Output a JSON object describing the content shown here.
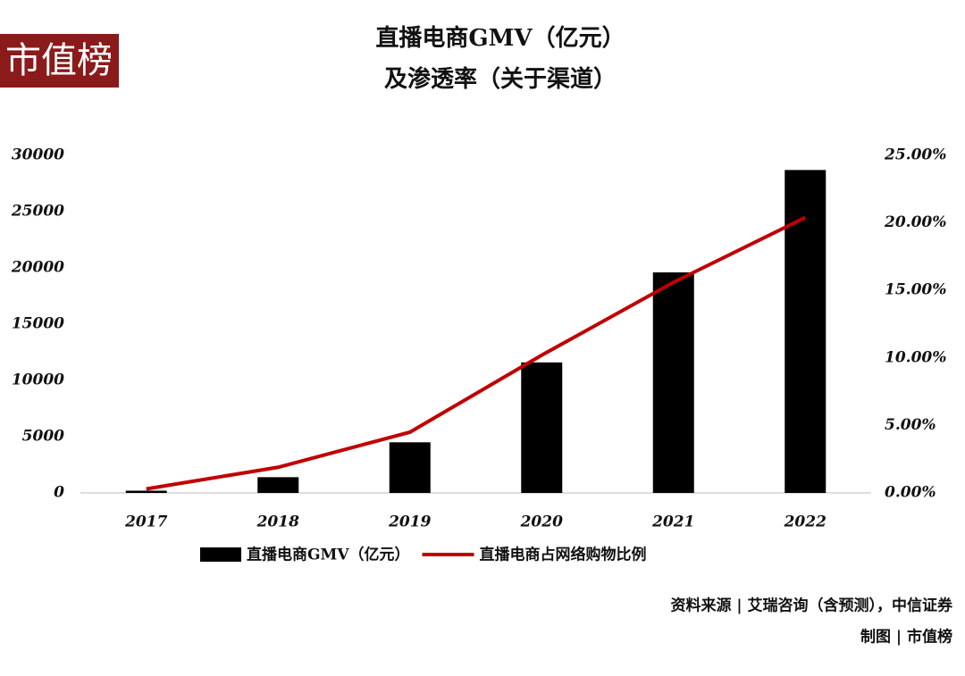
{
  "chart_data": {
    "type": "bar",
    "logo": "市值榜",
    "title": "直播电商GMV（亿元）",
    "subtitle": "及渗透率（关于渠道）",
    "categories": [
      "2017",
      "2018",
      "2019",
      "2020",
      "2021",
      "2022"
    ],
    "series": [
      {
        "name": "直播电商GMV（亿元）",
        "type": "bar",
        "color": "#000000",
        "values": [
          200,
          1400,
          4500,
          11600,
          19600,
          28700
        ]
      },
      {
        "name": "直播电商占网络购物比例",
        "type": "line",
        "axis": "y2",
        "color": "#c00000",
        "values": [
          0.3,
          1.9,
          4.5,
          10.2,
          15.6,
          20.4
        ]
      }
    ],
    "ylim": [
      0,
      30000
    ],
    "yticks": [
      0,
      5000,
      10000,
      15000,
      20000,
      25000,
      30000
    ],
    "y2lim": [
      0,
      25
    ],
    "y2ticks": [
      {
        "value": 0,
        "label": "0.00%"
      },
      {
        "value": 5,
        "label": "5.00%"
      },
      {
        "value": 10,
        "label": "10.00%"
      },
      {
        "value": 15,
        "label": "15.00%"
      },
      {
        "value": 20,
        "label": "20.00%"
      },
      {
        "value": 25,
        "label": "25.00%"
      }
    ],
    "legend": "bottom",
    "source": "资料来源 | 艾瑞咨询（含预测），中信证券",
    "credit": "制图 | 市值榜"
  }
}
